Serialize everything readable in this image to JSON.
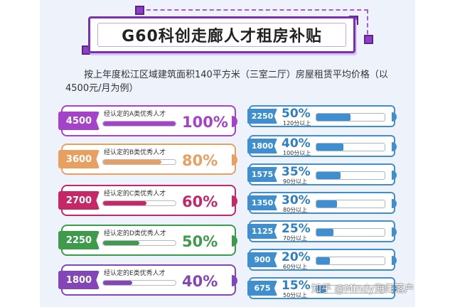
{
  "title": "G60科创走廊人才租房补贴",
  "intro": "按上年度松江区域建筑面积140平方米（三室二厅）房屋租赁平均价格（以4500元/月为例）",
  "left_items": [
    {
      "amount": "4500",
      "label": "经认定的A类优秀人才",
      "percent": "100%",
      "level": 1.0,
      "color": "#a443c9"
    },
    {
      "amount": "3600",
      "label": "经认定的B类优秀人才",
      "percent": "80%",
      "level": 0.8,
      "color": "#e8a060"
    },
    {
      "amount": "2700",
      "label": "经认定的C类优秀人才",
      "percent": "60%",
      "level": 0.6,
      "color": "#c42866"
    },
    {
      "amount": "2250",
      "label": "经认定的D类优秀人才",
      "percent": "50%",
      "level": 0.5,
      "color": "#3e9b4c"
    },
    {
      "amount": "1800",
      "label": "经认定的E类优秀人才",
      "percent": "40%",
      "level": 0.4,
      "color": "#8246b8"
    }
  ],
  "right_items": [
    {
      "amount": "2250",
      "percent": "50%",
      "label": "120分以上",
      "level": 0.5
    },
    {
      "amount": "1800",
      "percent": "40%",
      "label": "100分以上",
      "level": 0.4
    },
    {
      "amount": "1575",
      "percent": "35%",
      "label": "90分以上",
      "level": 0.35
    },
    {
      "amount": "1350",
      "percent": "30%",
      "label": "80分以上",
      "level": 0.3
    },
    {
      "amount": "1125",
      "percent": "25%",
      "label": "70分以上",
      "level": 0.25
    },
    {
      "amount": "900",
      "percent": "20%",
      "label": "60分以上",
      "level": 0.2
    },
    {
      "amount": "675",
      "percent": "15%",
      "label": "50分以上",
      "level": 0.15
    }
  ],
  "watermark": "知乎 @Mindy海归落户",
  "colors": {
    "right_accent": "#3f8fd0",
    "title_border": "#7b2fb0",
    "background": "#eef2fb"
  }
}
